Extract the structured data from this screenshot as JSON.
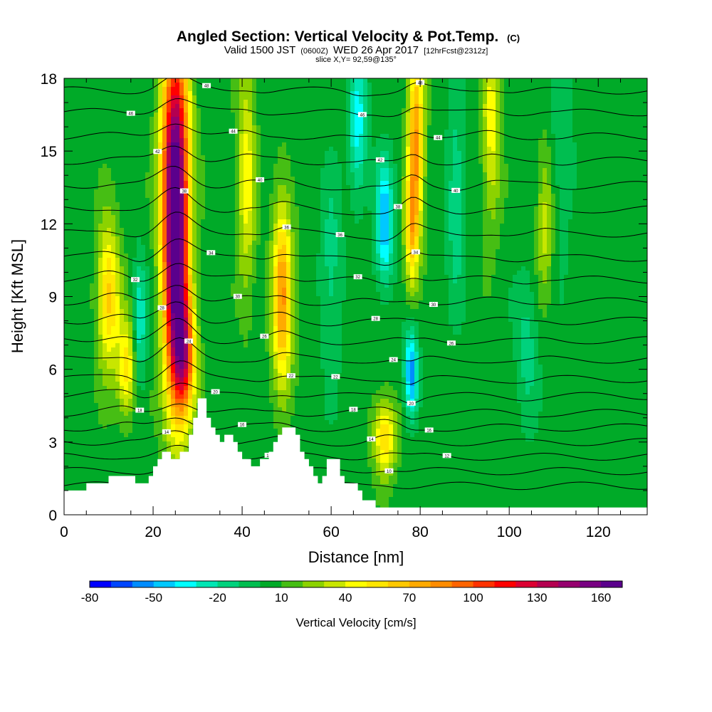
{
  "header": {
    "title_main": "Angled Section: Vertical Velocity & Pot.Temp.",
    "title_unit": "(C)",
    "valid_prefix": "Valid 1500 JST",
    "valid_utc": "(0600Z)",
    "valid_date": "WED 26 Apr 2017",
    "forecast": "[12hrFcst@2312z]",
    "slice": "slice X,Y= 92,59@135°"
  },
  "chart_data": {
    "type": "heatmap",
    "title": "Angled Section: Vertical Velocity & Pot.Temp. (C)",
    "xlabel": "Distance [nm]",
    "ylabel": "Height [Kft MSL]",
    "xlim": [
      0,
      131
    ],
    "ylim": [
      0,
      18
    ],
    "xticks": [
      0,
      20,
      40,
      60,
      80,
      100,
      120
    ],
    "yticks": [
      0,
      3,
      6,
      9,
      12,
      15,
      18
    ],
    "colorbar": {
      "label": "Vertical Velocity [cm/s]",
      "min": -80,
      "max": 170,
      "step": 10,
      "tick_values": [
        -80,
        -50,
        -20,
        10,
        40,
        70,
        100,
        130,
        160
      ],
      "colors": [
        "#0000ff",
        "#0046ff",
        "#008cff",
        "#00c8ff",
        "#00ffff",
        "#00e6b4",
        "#00d27d",
        "#00be50",
        "#00aa28",
        "#46be14",
        "#8cd200",
        "#c8e600",
        "#ffff00",
        "#ffe600",
        "#ffc800",
        "#ffaa00",
        "#ff8c00",
        "#ff6400",
        "#ff3200",
        "#ff0000",
        "#dc0032",
        "#b40050",
        "#96006e",
        "#780082",
        "#5a008c"
      ]
    },
    "velocity_features": [
      {
        "x": 25,
        "height_kft": 10.5,
        "vv_cm_s": 145,
        "x_width": 2.8,
        "height_span": 6
      },
      {
        "x": 25,
        "height_kft": 15.5,
        "vv_cm_s": 85,
        "x_width": 3.2,
        "height_span": 5
      },
      {
        "x": 27,
        "height_kft": 6.5,
        "vv_cm_s": 90,
        "x_width": 2.5,
        "height_span": 2.5
      },
      {
        "x": 49,
        "height_kft": 9,
        "vv_cm_s": 75,
        "x_width": 2.2,
        "height_span": 4
      },
      {
        "x": 79,
        "height_kft": 15.5,
        "vv_cm_s": 75,
        "x_width": 1.8,
        "height_span": 4
      },
      {
        "x": 78,
        "height_kft": 11.5,
        "vv_cm_s": 50,
        "x_width": 1.5,
        "height_span": 2.5
      },
      {
        "x": 10,
        "height_kft": 9,
        "vv_cm_s": 60,
        "x_width": 2.5,
        "height_span": 3
      },
      {
        "x": 14,
        "height_kft": 6,
        "vv_cm_s": 50,
        "x_width": 2,
        "height_span": 2
      },
      {
        "x": 72,
        "height_kft": 3.2,
        "vv_cm_s": 55,
        "x_width": 2.5,
        "height_span": 1.6
      },
      {
        "x": 41,
        "height_kft": 14,
        "vv_cm_s": 40,
        "x_width": 2,
        "height_span": 5
      },
      {
        "x": 96,
        "height_kft": 16,
        "vv_cm_s": 40,
        "x_width": 2,
        "height_span": 4
      },
      {
        "x": 108,
        "height_kft": 12,
        "vv_cm_s": 30,
        "x_width": 1.8,
        "height_span": 3
      },
      {
        "x": 17,
        "height_kft": 8,
        "vv_cm_s": -35,
        "x_width": 1.5,
        "height_span": 2.5
      },
      {
        "x": 72,
        "height_kft": 12,
        "vv_cm_s": -55,
        "x_width": 2,
        "height_span": 2.5
      },
      {
        "x": 66,
        "height_kft": 16,
        "vv_cm_s": -40,
        "x_width": 2,
        "height_span": 3
      },
      {
        "x": 78,
        "height_kft": 5.8,
        "vv_cm_s": -65,
        "x_width": 1.5,
        "height_span": 1.8
      },
      {
        "x": 88,
        "height_kft": 13,
        "vv_cm_s": -25,
        "x_width": 2,
        "height_span": 4
      },
      {
        "x": 104,
        "height_kft": 7,
        "vv_cm_s": -20,
        "x_width": 2.5,
        "height_span": 3
      },
      {
        "x": 60,
        "height_kft": 10,
        "vv_cm_s": -20,
        "x_width": 2.5,
        "height_span": 4
      },
      {
        "x": 112,
        "height_kft": 15,
        "vv_cm_s": -15,
        "x_width": 2.5,
        "height_span": 4
      }
    ],
    "terrain_kft": [
      [
        0,
        1.0
      ],
      [
        5,
        1.0
      ],
      [
        5,
        1.3
      ],
      [
        10,
        1.3
      ],
      [
        10,
        1.6
      ],
      [
        16,
        1.6
      ],
      [
        16,
        1.3
      ],
      [
        19,
        1.3
      ],
      [
        19,
        1.6
      ],
      [
        20,
        1.6
      ],
      [
        20,
        2.0
      ],
      [
        21,
        2.0
      ],
      [
        21,
        2.3
      ],
      [
        22,
        2.3
      ],
      [
        22,
        2.6
      ],
      [
        24,
        2.6
      ],
      [
        24,
        2.3
      ],
      [
        26,
        2.3
      ],
      [
        26,
        2.6
      ],
      [
        28,
        2.6
      ],
      [
        28,
        3.3
      ],
      [
        29,
        3.3
      ],
      [
        29,
        4.0
      ],
      [
        30,
        4.0
      ],
      [
        30,
        4.8
      ],
      [
        32,
        4.8
      ],
      [
        32,
        4.0
      ],
      [
        33,
        4.0
      ],
      [
        33,
        3.6
      ],
      [
        34,
        3.6
      ],
      [
        34,
        3.3
      ],
      [
        35,
        3.3
      ],
      [
        35,
        3.0
      ],
      [
        36,
        3.0
      ],
      [
        36,
        3.3
      ],
      [
        38,
        3.3
      ],
      [
        38,
        3.0
      ],
      [
        39,
        3.0
      ],
      [
        39,
        2.6
      ],
      [
        40,
        2.6
      ],
      [
        40,
        2.3
      ],
      [
        42,
        2.3
      ],
      [
        42,
        2.0
      ],
      [
        44,
        2.0
      ],
      [
        44,
        2.3
      ],
      [
        46,
        2.3
      ],
      [
        46,
        2.6
      ],
      [
        47,
        2.6
      ],
      [
        47,
        3.0
      ],
      [
        48,
        3.0
      ],
      [
        48,
        3.3
      ],
      [
        49,
        3.3
      ],
      [
        49,
        3.6
      ],
      [
        52,
        3.6
      ],
      [
        52,
        3.3
      ],
      [
        53,
        3.3
      ],
      [
        53,
        2.6
      ],
      [
        54,
        2.6
      ],
      [
        54,
        2.3
      ],
      [
        55,
        2.3
      ],
      [
        55,
        2.0
      ],
      [
        56,
        2.0
      ],
      [
        56,
        1.6
      ],
      [
        57,
        1.6
      ],
      [
        57,
        1.3
      ],
      [
        58,
        1.3
      ],
      [
        58,
        1.6
      ],
      [
        59,
        1.6
      ],
      [
        59,
        2.3
      ],
      [
        62,
        2.3
      ],
      [
        62,
        1.6
      ],
      [
        63,
        1.6
      ],
      [
        63,
        1.3
      ],
      [
        66,
        1.3
      ],
      [
        66,
        1.0
      ],
      [
        67,
        1.0
      ],
      [
        67,
        0.6
      ],
      [
        70,
        0.6
      ],
      [
        70,
        0.3
      ],
      [
        131,
        0.3
      ]
    ],
    "theta_contours_c": [
      {
        "value": 8,
        "base_height_kft": 1.2
      },
      {
        "value": 10,
        "base_height_kft": 1.8
      },
      {
        "value": 12,
        "base_height_kft": 2.4
      },
      {
        "value": 14,
        "base_height_kft": 3.0
      },
      {
        "value": 16,
        "base_height_kft": 3.6
      },
      {
        "value": 18,
        "base_height_kft": 4.2
      },
      {
        "value": 20,
        "base_height_kft": 4.9
      },
      {
        "value": 22,
        "base_height_kft": 5.6
      },
      {
        "value": 24,
        "base_height_kft": 6.4
      },
      {
        "value": 26,
        "base_height_kft": 7.2
      },
      {
        "value": 28,
        "base_height_kft": 8.0
      },
      {
        "value": 30,
        "base_height_kft": 8.8
      },
      {
        "value": 32,
        "base_height_kft": 9.7
      },
      {
        "value": 34,
        "base_height_kft": 10.6
      },
      {
        "value": 36,
        "base_height_kft": 11.6
      },
      {
        "value": 38,
        "base_height_kft": 12.6
      },
      {
        "value": 40,
        "base_height_kft": 13.6
      },
      {
        "value": 42,
        "base_height_kft": 14.6
      },
      {
        "value": 44,
        "base_height_kft": 15.6
      },
      {
        "value": 46,
        "base_height_kft": 16.6
      },
      {
        "value": 48,
        "base_height_kft": 17.5
      }
    ]
  }
}
